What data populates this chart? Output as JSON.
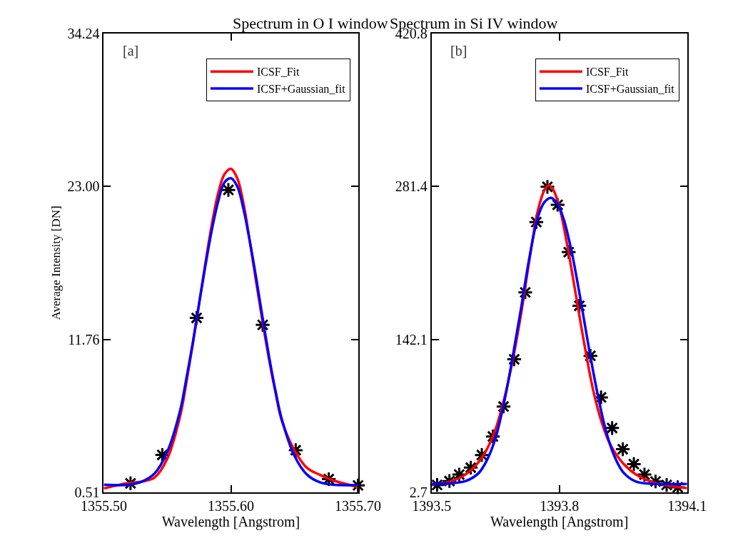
{
  "chart_data": [
    {
      "type": "line",
      "title": "Spectrum in O I window",
      "xlabel": "Wavelength [Angstrom]",
      "ylabel": "Average Intensity [DN]",
      "annotations": [
        "[a]"
      ],
      "xlim": [
        1355.5,
        1355.7
      ],
      "xticks": [
        {
          "value": 1355.5,
          "label": "1355.50"
        },
        {
          "value": 1355.6,
          "label": "1355.60"
        },
        {
          "value": 1355.7,
          "label": "1355.70"
        }
      ],
      "ylim": [
        0.51,
        34.24
      ],
      "yticks": [
        0.51,
        11.76,
        {
          "value": 23.0,
          "label": "23.00"
        },
        34.24
      ],
      "legend": "top right",
      "series": [
        {
          "type": "scatter",
          "marker": "cross",
          "color": "#000000",
          "x": [
            1355.521,
            1355.546,
            1355.573,
            1355.598,
            1355.625,
            1355.651,
            1355.677,
            1355.7
          ],
          "values": [
            1.17,
            3.26,
            13.33,
            22.74,
            12.82,
            3.61,
            1.48,
            1.02
          ]
        },
        {
          "name": "ICSF_Fit",
          "color": "#ff0000",
          "marker": "none",
          "x": [
            1355.5,
            1355.52,
            1355.53,
            1355.54,
            1355.55,
            1355.56,
            1355.565,
            1355.57,
            1355.575,
            1355.58,
            1355.585,
            1355.59,
            1355.595,
            1355.6,
            1355.605,
            1355.61,
            1355.615,
            1355.62,
            1355.625,
            1355.63,
            1355.635,
            1355.64,
            1355.65,
            1355.66,
            1355.67,
            1355.68,
            1355.7
          ],
          "values": [
            0.8,
            1.2,
            1.3,
            1.6,
            3.0,
            6.1,
            8.6,
            11.4,
            14.4,
            17.4,
            20.2,
            22.5,
            23.9,
            24.3,
            23.6,
            21.7,
            18.9,
            15.9,
            13.0,
            10.3,
            7.9,
            5.8,
            3.6,
            2.3,
            1.8,
            1.4,
            0.9
          ]
        },
        {
          "name": "ICSF+Gaussian_fit",
          "color": "#0000ff",
          "marker": "none",
          "x": [
            1355.5,
            1355.52,
            1355.53,
            1355.54,
            1355.55,
            1355.56,
            1355.565,
            1355.57,
            1355.575,
            1355.58,
            1355.585,
            1355.59,
            1355.595,
            1355.6,
            1355.605,
            1355.61,
            1355.615,
            1355.62,
            1355.625,
            1355.63,
            1355.635,
            1355.64,
            1355.65,
            1355.66,
            1355.67,
            1355.68,
            1355.7
          ],
          "values": [
            1.07,
            1.07,
            1.3,
            1.9,
            3.5,
            6.5,
            8.9,
            11.5,
            14.4,
            17.2,
            19.8,
            21.9,
            23.3,
            23.6,
            23.0,
            21.3,
            18.9,
            16.2,
            13.3,
            10.5,
            8.0,
            5.9,
            3.2,
            1.8,
            1.25,
            1.07,
            1.05
          ]
        }
      ]
    },
    {
      "type": "line",
      "title": "Spectrum in Si IV window",
      "xlabel": "Wavelength [Angstrom]",
      "annotations": [
        "[b]"
      ],
      "xlim": [
        1393.5,
        1394.1
      ],
      "xticks": [
        1393.5,
        1393.8,
        1394.1
      ],
      "ylim": [
        2.7,
        420.8
      ],
      "yticks": [
        2.7,
        142.1,
        281.4,
        420.8
      ],
      "legend": "top right",
      "series": [
        {
          "type": "scatter",
          "marker": "cross",
          "color": "#000000",
          "x": [
            1393.513,
            1393.542,
            1393.565,
            1393.592,
            1393.618,
            1393.644,
            1393.669,
            1393.694,
            1393.72,
            1393.746,
            1393.772,
            1393.796,
            1393.822,
            1393.847,
            1393.873,
            1393.898,
            1393.924,
            1393.949,
            1393.975,
            1394.0,
            1394.026,
            1394.052,
            1394.078
          ],
          "values": [
            9.4,
            13.0,
            18.9,
            25.2,
            36.7,
            53.6,
            80.9,
            123.9,
            184.9,
            249.0,
            281.1,
            264.7,
            221.6,
            172.7,
            127.1,
            89.2,
            61.3,
            42.0,
            28.4,
            18.9,
            12.6,
            9.4,
            7.3
          ]
        },
        {
          "name": "ICSF_Fit",
          "color": "#ff0000",
          "marker": "none",
          "x": [
            1393.5,
            1393.54,
            1393.58,
            1393.61,
            1393.63,
            1393.65,
            1393.67,
            1393.69,
            1393.71,
            1393.73,
            1393.75,
            1393.765,
            1393.775,
            1393.785,
            1393.8,
            1393.82,
            1393.84,
            1393.86,
            1393.88,
            1393.9,
            1393.92,
            1393.95,
            1393.98,
            1394.02,
            1394.06,
            1394.1
          ],
          "values": [
            9.6,
            12,
            19,
            30,
            42,
            60,
            87,
            122,
            165,
            215,
            260,
            278,
            282.5,
            279,
            263,
            225,
            180,
            135,
            95,
            66,
            46,
            29,
            19,
            12,
            8.5,
            6.5
          ]
        },
        {
          "name": "ICSF+Gaussian_fit",
          "color": "#0000ff",
          "marker": "none",
          "x": [
            1393.5,
            1393.54,
            1393.58,
            1393.61,
            1393.63,
            1393.65,
            1393.67,
            1393.69,
            1393.71,
            1393.73,
            1393.75,
            1393.765,
            1393.78,
            1393.795,
            1393.81,
            1393.83,
            1393.85,
            1393.87,
            1393.89,
            1393.91,
            1393.93,
            1393.95,
            1393.98,
            1394.02,
            1394.1
          ],
          "values": [
            10.3,
            10.8,
            13,
            20,
            32,
            52,
            84,
            125,
            170,
            217,
            254,
            267,
            271,
            266,
            252,
            220,
            178,
            133,
            92,
            58,
            35,
            21,
            12.5,
            10.5,
            10.3
          ]
        }
      ]
    }
  ]
}
